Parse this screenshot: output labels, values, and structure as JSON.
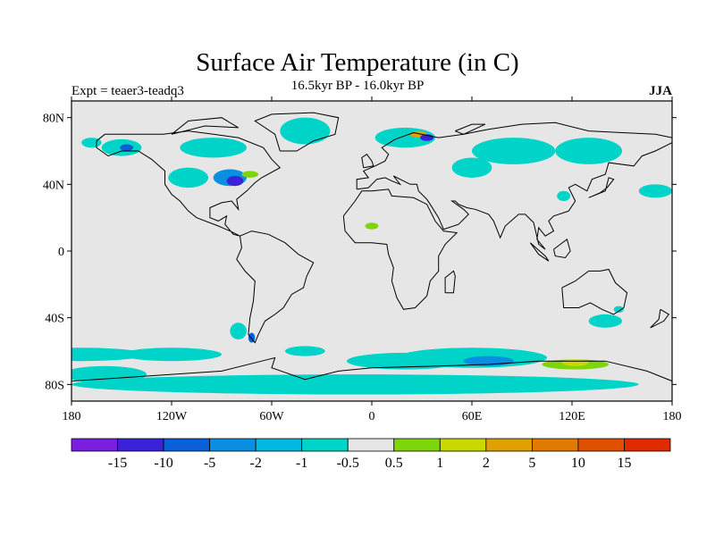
{
  "title": "Surface Air Temperature (in C)",
  "subtitle": "16.5kyr BP - 16.0kyr BP",
  "left_label": "Expt = teaer3-teadq3",
  "right_label": "JJA",
  "map": {
    "projection": "cylindrical-equidistant",
    "lon_range": [
      -180,
      180
    ],
    "lat_range": [
      -90,
      90
    ],
    "background_color": "#e6e6e6",
    "coastline_color": "#000000",
    "x_ticks": [
      {
        "lon": -180,
        "label": "180"
      },
      {
        "lon": -120,
        "label": "120W"
      },
      {
        "lon": -60,
        "label": "60W"
      },
      {
        "lon": 0,
        "label": "0"
      },
      {
        "lon": 60,
        "label": "60E"
      },
      {
        "lon": 120,
        "label": "120E"
      },
      {
        "lon": 180,
        "label": "180"
      }
    ],
    "y_ticks": [
      {
        "lat": 80,
        "label": "80N"
      },
      {
        "lat": 40,
        "label": "40N"
      },
      {
        "lat": 0,
        "label": "0"
      },
      {
        "lat": -40,
        "label": "40S"
      },
      {
        "lat": -80,
        "label": "80S"
      }
    ],
    "anomaly_regions": [
      {
        "name": "greenland-ice",
        "value": -1,
        "color": "#00d4c8",
        "lon": -40,
        "lat": 72
      },
      {
        "name": "north-america-warm",
        "value": 1,
        "color": "#7ed60a",
        "lon": -80,
        "lat": 46
      },
      {
        "name": "eastern-us-cold",
        "value": -10,
        "color": "#3a22d8",
        "lon": -83,
        "lat": 43
      },
      {
        "name": "alaska-cold",
        "value": -5,
        "color": "#0a60d8",
        "lon": -147,
        "lat": 62
      },
      {
        "name": "scandinavia-warm",
        "value": 5,
        "color": "#e0a000",
        "lon": 25,
        "lat": 68
      },
      {
        "name": "siberia-cold",
        "value": -1,
        "color": "#00d4c8",
        "lon": 85,
        "lat": 60
      },
      {
        "name": "sahel-warm",
        "value": 1,
        "color": "#7ed60a",
        "lon": 0,
        "lat": 15
      },
      {
        "name": "southern-ocean-cold",
        "value": -1,
        "color": "#00d4c8",
        "lon": 60,
        "lat": -62
      },
      {
        "name": "antarctic-coast-warm",
        "value": 2,
        "color": "#c8d800",
        "lon": 120,
        "lat": -68
      }
    ]
  },
  "colorbar": {
    "colors": [
      "#7a1ee0",
      "#3a22d8",
      "#0a60d8",
      "#0a8ee0",
      "#00b8de",
      "#00d4c8",
      "#e6e6e6",
      "#7ed60a",
      "#c8d800",
      "#e0a000",
      "#e07a00",
      "#e05000",
      "#e02a00"
    ],
    "labels": [
      "-15",
      "-10",
      "-5",
      "-2",
      "-1",
      "-0.5",
      "0.5",
      "1",
      "2",
      "5",
      "10",
      "15"
    ]
  }
}
